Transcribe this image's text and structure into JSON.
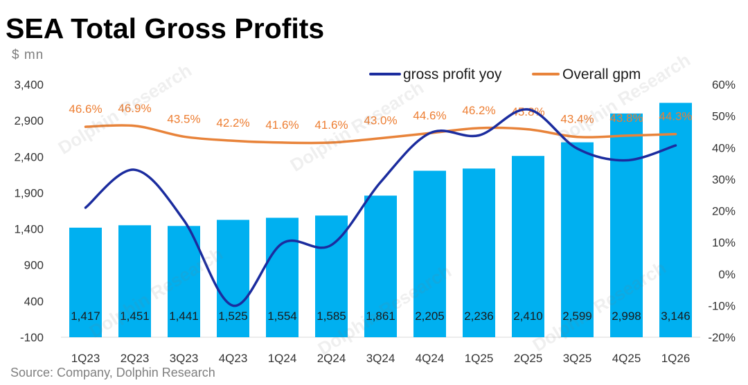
{
  "chart_data": {
    "type": "bar",
    "title": "SEA Total Gross Profits",
    "ylabel": "$ mn",
    "categories": [
      "1Q23",
      "2Q23",
      "3Q23",
      "4Q23",
      "1Q24",
      "2Q24",
      "3Q24",
      "4Q24",
      "1Q25",
      "2Q25",
      "3Q25",
      "4Q25",
      "1Q26"
    ],
    "y_left": {
      "ylim": [
        -100,
        3400
      ],
      "tick_labels": [
        "-100",
        "400",
        "900",
        "1,400",
        "1,900",
        "2,400",
        "2,900",
        "3,400"
      ]
    },
    "y_right": {
      "ylim": [
        -20,
        60
      ],
      "tick_labels": [
        "-20%",
        "-10%",
        "0%",
        "10%",
        "20%",
        "30%",
        "40%",
        "50%",
        "60%"
      ]
    },
    "grid": false,
    "legend": {
      "position": "top-right"
    },
    "series": [
      {
        "type": "bar",
        "axis": "left",
        "color": "#00B0F0",
        "values": [
          1417,
          1451,
          1441,
          1525,
          1554,
          1585,
          1861,
          2205,
          2236,
          2410,
          2599,
          2998,
          3146
        ],
        "labels": [
          "1,417",
          "1,451",
          "1,441",
          "1,525",
          "1,554",
          "1,585",
          "1,861",
          "2,205",
          "2,236",
          "2,410",
          "2,599",
          "2,998",
          "3,146"
        ]
      },
      {
        "name": "gross profit yoy",
        "type": "line",
        "axis": "right",
        "color": "#1B2C9E",
        "values": [
          21,
          33,
          17,
          -10,
          9.7,
          9.2,
          29.1,
          44.6,
          43.9,
          52.1,
          39.7,
          36.0,
          40.7
        ]
      },
      {
        "name": "Overall gpm",
        "type": "line",
        "axis": "right",
        "color": "#E8833A",
        "label_color": "#ED7D31",
        "values": [
          46.6,
          46.9,
          43.5,
          42.2,
          41.6,
          41.6,
          43.0,
          44.6,
          46.2,
          45.8,
          43.4,
          43.8,
          44.3
        ],
        "labels": [
          "46.6%",
          "46.9%",
          "43.5%",
          "42.2%",
          "41.6%",
          "41.6%",
          "43.0%",
          "44.6%",
          "46.2%",
          "45.8%",
          "43.4%",
          "43.8%",
          "44.3%"
        ]
      }
    ]
  },
  "source": "Source: Company, Dolphin Research",
  "watermark": "Dolphin Research"
}
